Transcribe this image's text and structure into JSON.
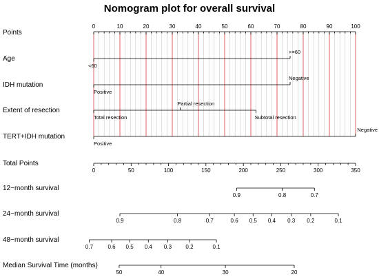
{
  "chart_data": {
    "type": "nomogram",
    "title": "Nomogram plot for overall survival",
    "points_scale": {
      "label": "Points",
      "min": 0,
      "max": 100,
      "major_ticks": [
        0,
        10,
        20,
        30,
        40,
        50,
        60,
        70,
        80,
        90,
        100
      ],
      "minor_step": 2
    },
    "variables": [
      {
        "label": "Age",
        "levels": [
          {
            "name": "<60",
            "points": 0
          },
          {
            "name": ">=60",
            "points": 75
          }
        ]
      },
      {
        "label": "IDH mutation",
        "levels": [
          {
            "name": "Positive",
            "points": 0
          },
          {
            "name": "Negative",
            "points": 75
          }
        ]
      },
      {
        "label": "Extent of resection",
        "levels": [
          {
            "name": "Total resection",
            "points": 0
          },
          {
            "name": "Partial resection",
            "points": 33
          },
          {
            "name": "Subtotal resection",
            "points": 62
          }
        ]
      },
      {
        "label": "TERT+IDH mutation",
        "levels": [
          {
            "name": "Positive",
            "points": 0
          },
          {
            "name": "Negative",
            "points": 100
          }
        ]
      }
    ],
    "total_points": {
      "label": "Total Points",
      "min": 0,
      "max": 350,
      "major_ticks": [
        0,
        50,
        100,
        150,
        200,
        250,
        300,
        350
      ],
      "minor_step": 10
    },
    "outcomes": [
      {
        "label": "12−month survival",
        "ticks": [
          {
            "value": "0.9",
            "total_points": 191
          },
          {
            "value": "0.8",
            "total_points": 252
          },
          {
            "value": "0.7",
            "total_points": 295
          }
        ]
      },
      {
        "label": "24−month survival",
        "ticks": [
          {
            "value": "0.9",
            "total_points": 35
          },
          {
            "value": "0.8",
            "total_points": 112
          },
          {
            "value": "0.7",
            "total_points": 155
          },
          {
            "value": "0.6",
            "total_points": 188
          },
          {
            "value": "0.5",
            "total_points": 213
          },
          {
            "value": "0.4",
            "total_points": 238
          },
          {
            "value": "0.3",
            "total_points": 264
          },
          {
            "value": "0.2",
            "total_points": 290
          },
          {
            "value": "0.1",
            "total_points": 327
          }
        ]
      },
      {
        "label": "48−month survival",
        "ticks": [
          {
            "value": "0.7",
            "total_points": -6
          },
          {
            "value": "0.6",
            "total_points": 24
          },
          {
            "value": "0.5",
            "total_points": 48
          },
          {
            "value": "0.4",
            "total_points": 73
          },
          {
            "value": "0.3",
            "total_points": 99
          },
          {
            "value": "0.2",
            "total_points": 128
          },
          {
            "value": "0.1",
            "total_points": 164
          }
        ]
      },
      {
        "label": "Median Survival Time (months)",
        "ticks": [
          {
            "value": "50",
            "total_points": 34
          },
          {
            "value": "40",
            "total_points": 90
          },
          {
            "value": "30",
            "total_points": 176
          },
          {
            "value": "20",
            "total_points": 268
          }
        ]
      }
    ]
  }
}
